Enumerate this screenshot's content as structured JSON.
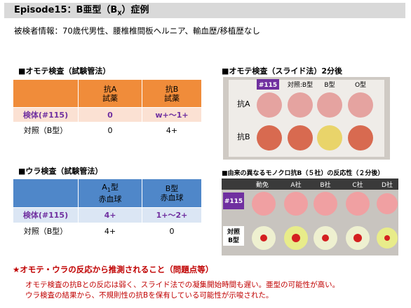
{
  "header": {
    "title": [
      "Episode15：B亜型（B",
      "X",
      "）症例"
    ],
    "info": "被検者情報：70歳代男性、腰椎椎間板ヘルニア、輸血歴/移植歴なし"
  },
  "omote_tube": {
    "heading": "■オモテ検査（試験管法）",
    "columns": [
      [
        "抗A",
        "試薬"
      ],
      [
        "抗B",
        "試薬"
      ]
    ],
    "rows": [
      [
        "検体(#115)",
        "0",
        "w+〜1+"
      ],
      [
        "対照（B型）",
        "0",
        "4+"
      ]
    ]
  },
  "ura_tube": {
    "heading": "■ウラ検査（試験管法）",
    "columns": [
      [
        "A",
        "1",
        "型",
        "赤血球"
      ],
      [
        "B型",
        "赤血球"
      ]
    ],
    "rows": [
      [
        "検体(#115)",
        "4+",
        "1+〜2+"
      ],
      [
        "対照（B型）",
        "4+",
        "0"
      ]
    ]
  },
  "omote_slide": {
    "heading": "■オモテ検査（スライド法）2分後",
    "sample": "#115",
    "columns": [
      "対照:B型",
      "B型",
      "O型"
    ],
    "rows": [
      "抗A",
      "抗B"
    ]
  },
  "monoclonal": {
    "heading": "■由来の異なるモノクロ抗B（５社）の反応性（２分後）",
    "columns": [
      "動免",
      "A社",
      "B社",
      "C社",
      "D社"
    ],
    "rows": [
      "#115",
      [
        "対照",
        "B型"
      ]
    ]
  },
  "conclusion": {
    "heading": "★オモテ・ウラの反応から推測されること（問題点等）",
    "lines": [
      "オモテ検査の抗Bとの反応は弱く、スライド法での凝集開始時間も遅い。亜型の可能性が高い。",
      "ウラ検査の結果から、不規則性の抗Bを保有している可能性が示唆された。"
    ]
  }
}
